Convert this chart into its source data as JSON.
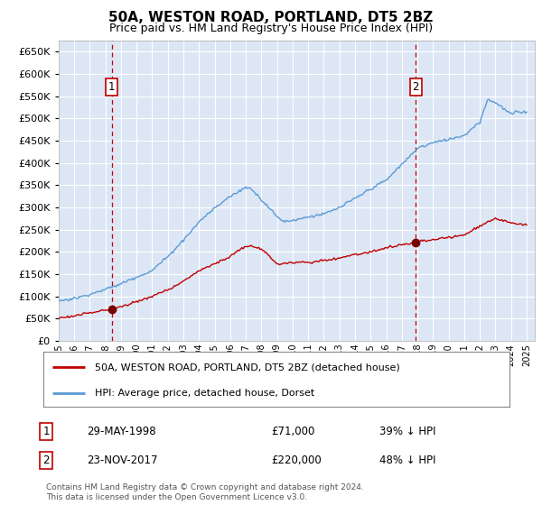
{
  "title": "50A, WESTON ROAD, PORTLAND, DT5 2BZ",
  "subtitle": "Price paid vs. HM Land Registry's House Price Index (HPI)",
  "ylim": [
    0,
    675000
  ],
  "yticks": [
    0,
    50000,
    100000,
    150000,
    200000,
    250000,
    300000,
    350000,
    400000,
    450000,
    500000,
    550000,
    600000,
    650000
  ],
  "plot_bg": "#dce6f5",
  "hpi_color": "#5b9bd5",
  "price_color": "#c00000",
  "marker_color": "#7b0000",
  "dashed_line_color": "#c00000",
  "annotation_box_color": "#c00000",
  "sale1_date_num": 1998.41,
  "sale1_price": 71000,
  "sale2_date_num": 2017.9,
  "sale2_price": 220000,
  "legend_label1": "50A, WESTON ROAD, PORTLAND, DT5 2BZ (detached house)",
  "legend_label2": "HPI: Average price, detached house, Dorset",
  "table_row1_date": "29-MAY-1998",
  "table_row1_price": "£71,000",
  "table_row1_hpi": "39% ↓ HPI",
  "table_row2_date": "23-NOV-2017",
  "table_row2_price": "£220,000",
  "table_row2_hpi": "48% ↓ HPI",
  "footer": "Contains HM Land Registry data © Crown copyright and database right 2024.\nThis data is licensed under the Open Government Licence v3.0."
}
